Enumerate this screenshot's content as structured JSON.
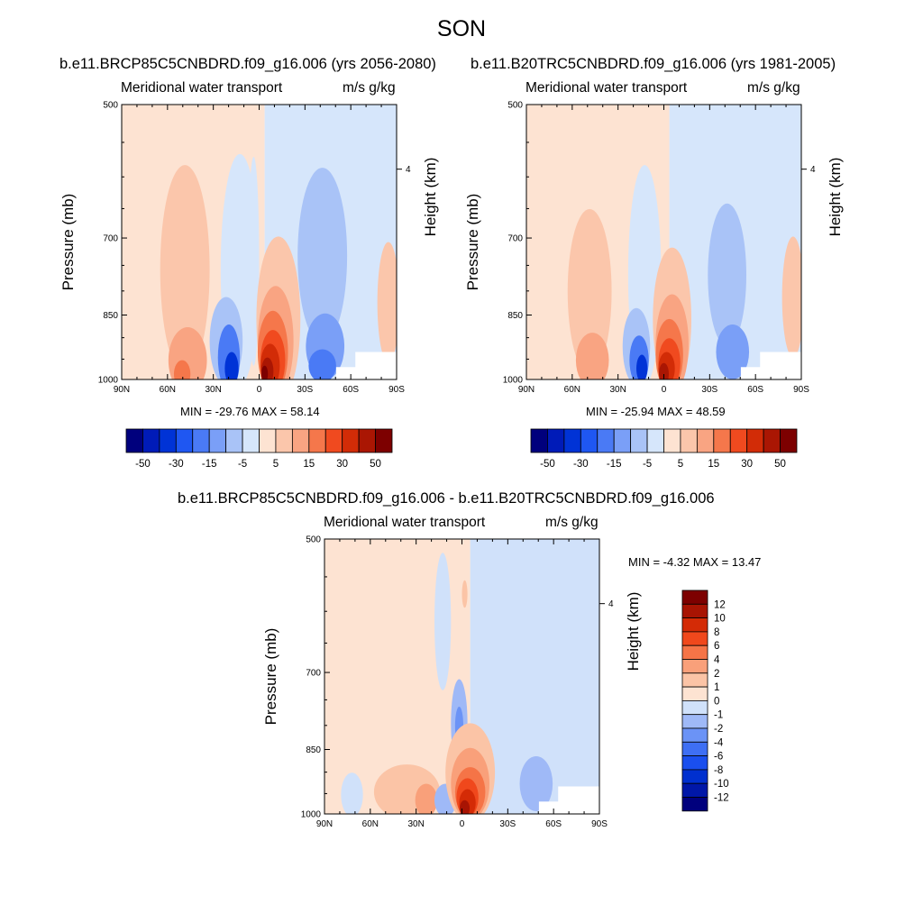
{
  "page_title": "SON",
  "colors": {
    "palette": [
      "#00007d",
      "#001bb8",
      "#0033d6",
      "#1f57f2",
      "#4a7af5",
      "#7a9ff7",
      "#a9c3f7",
      "#d6e6fb",
      "#fde3d2",
      "#fbc6ab",
      "#f9a482",
      "#f5774b",
      "#f04a1f",
      "#d22c07",
      "#aa1603",
      "#7d0000"
    ],
    "diff_palette": [
      "#00007d",
      "#0017a8",
      "#0030cf",
      "#1a4fee",
      "#3e6ff4",
      "#6b93f6",
      "#9fb9f7",
      "#d0e1fa",
      "#fde3d2",
      "#fbc4a6",
      "#f9a07a",
      "#f57447",
      "#f0481c",
      "#d42b06",
      "#a81403",
      "#7d0000"
    ]
  },
  "chart_data": [
    {
      "type": "heatmap",
      "run_title": "b.e11.BRCP85C5CNBDRD.f09_g16.006 (yrs 2056-2080)",
      "left_label": "Meridional water transport",
      "right_label": "m/s g/kg",
      "ylabel": "Pressure (mb)",
      "y2label": "Height (km)",
      "y_ticks": [
        "500",
        "700",
        "850",
        "1000"
      ],
      "y2_ticks": [
        "4"
      ],
      "x_ticks": [
        "90N",
        "60N",
        "30N",
        "0",
        "30S",
        "60S",
        "90S"
      ],
      "min_max_text": "MIN = -29.76  MAX =  58.14",
      "min": -29.76,
      "max": 58.14,
      "colorbar_labels": [
        "-50",
        "-30",
        "-15",
        "-5",
        "5",
        "15",
        "30",
        "50"
      ]
    },
    {
      "type": "heatmap",
      "run_title": "b.e11.B20TRC5CNBDRD.f09_g16.006 (yrs 1981-2005)",
      "left_label": "Meridional water transport",
      "right_label": "m/s g/kg",
      "ylabel": "Pressure (mb)",
      "y2label": "Height (km)",
      "y_ticks": [
        "500",
        "700",
        "850",
        "1000"
      ],
      "y2_ticks": [
        "4"
      ],
      "x_ticks": [
        "90N",
        "60N",
        "30N",
        "0",
        "30S",
        "60S",
        "90S"
      ],
      "min_max_text": "MIN = -25.94  MAX =  48.59",
      "min": -25.94,
      "max": 48.59,
      "colorbar_labels": [
        "-50",
        "-30",
        "-15",
        "-5",
        "5",
        "15",
        "30",
        "50"
      ]
    },
    {
      "type": "heatmap",
      "run_title": "b.e11.BRCP85C5CNBDRD.f09_g16.006 - b.e11.B20TRC5CNBDRD.f09_g16.006",
      "left_label": "Meridional water transport",
      "right_label": "m/s g/kg",
      "ylabel": "Pressure (mb)",
      "y2label": "Height (km)",
      "y_ticks": [
        "500",
        "700",
        "850",
        "1000"
      ],
      "y2_ticks": [
        "4"
      ],
      "x_ticks": [
        "90N",
        "60N",
        "30N",
        "0",
        "30S",
        "60S",
        "90S"
      ],
      "min_max_text": "MIN =  -4.32  MAX =  13.47",
      "min": -4.32,
      "max": 13.47,
      "colorbar_labels": [
        "12",
        "10",
        "8",
        "6",
        "4",
        "2",
        "1",
        "0",
        "-1",
        "-2",
        "-4",
        "-6",
        "-8",
        "-10",
        "-12"
      ]
    }
  ]
}
